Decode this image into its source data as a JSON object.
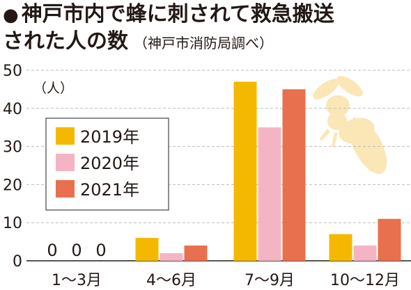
{
  "title": {
    "bullet": "●",
    "line1": "神戸市内で蜂に刺されて救急搬送",
    "line2": "された人の数",
    "source": "（神戸市消防局調べ）"
  },
  "chart_data": {
    "type": "bar",
    "ylabel": "（人）",
    "ylim": [
      0,
      50
    ],
    "yticks": [
      0,
      10,
      20,
      30,
      40,
      50
    ],
    "grid": true,
    "legend_position": "left",
    "categories": [
      "1～3月",
      "4～6月",
      "7～9月",
      "10～12月"
    ],
    "series": [
      {
        "name": "2019年",
        "color": "#f5b800",
        "values": [
          0,
          6,
          47,
          7
        ]
      },
      {
        "name": "2020年",
        "color": "#f4b4c4",
        "values": [
          0,
          2,
          35,
          4
        ]
      },
      {
        "name": "2021年",
        "color": "#e8704e",
        "values": [
          0,
          4,
          45,
          11
        ]
      }
    ],
    "zero_labels": [
      "0",
      "0",
      "0"
    ]
  },
  "decoration": {
    "icon": "bee-icon",
    "color": "#fbe6b5"
  }
}
